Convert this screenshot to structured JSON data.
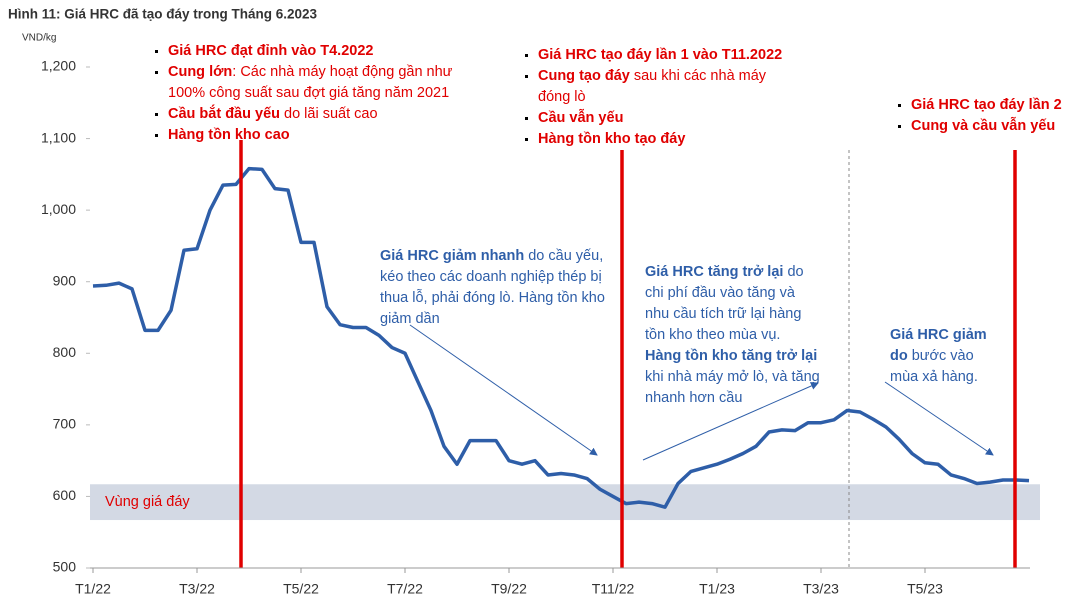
{
  "chart_data": {
    "type": "line",
    "title": "Hình 11: Giá HRC đã tạo đáy trong Tháng 6.2023",
    "y_label": "VND/kg",
    "categories": [
      "T1/22",
      null,
      null,
      null,
      null,
      null,
      null,
      null,
      "T3/22",
      null,
      null,
      null,
      null,
      null,
      null,
      null,
      "T5/22",
      null,
      null,
      null,
      null,
      null,
      null,
      null,
      "T7/22",
      null,
      null,
      null,
      null,
      null,
      null,
      null,
      "T9/22",
      null,
      null,
      null,
      null,
      null,
      null,
      null,
      "T11/22",
      null,
      null,
      null,
      null,
      null,
      null,
      null,
      "T1/23",
      null,
      null,
      null,
      null,
      null,
      null,
      null,
      "T3/23",
      null,
      null,
      null,
      null,
      null,
      null,
      null,
      "T5/23",
      null,
      null,
      null,
      null,
      null,
      null,
      null,
      null
    ],
    "series": [
      {
        "name": "Giá HRC",
        "color": "#2e5ea8",
        "values": [
          894,
          895,
          898,
          890,
          832,
          832,
          860,
          944,
          946,
          1000,
          1035,
          1036,
          1058,
          1057,
          1030,
          1028,
          955,
          955,
          865,
          840,
          836,
          836,
          825,
          808,
          800,
          760,
          720,
          670,
          645,
          678,
          678,
          678,
          650,
          645,
          650,
          630,
          632,
          630,
          625,
          610,
          600,
          590,
          592,
          590,
          585,
          618,
          635,
          640,
          645,
          652,
          660,
          670,
          690,
          693,
          692,
          703,
          703,
          707,
          720,
          718,
          708,
          697,
          680,
          660,
          647,
          645,
          630,
          625,
          618,
          620,
          623,
          623,
          622
        ]
      }
    ],
    "ylim": [
      500,
      1200
    ],
    "yticks": [
      500,
      600,
      700,
      800,
      900,
      {
        "value": 1000,
        "label": "1,000"
      },
      {
        "value": 1100,
        "label": "1,100"
      },
      {
        "value": 1200,
        "label": "1,200"
      }
    ],
    "band": {
      "label": "Vùng giá đáy",
      "range": [
        567,
        617
      ],
      "color": "#d3d9e4"
    },
    "annotations": [
      {
        "color": "#e00000",
        "bullets": [
          [
            {
              "text": "Giá HRC đạt đỉnh vào T4.2022",
              "bold": true
            }
          ],
          [
            {
              "text": "Cung lớn",
              "bold": true
            },
            {
              "text": ": Các nhà máy hoạt động gần như 100% công suất sau đợt giá tăng năm 2021",
              "bold": false
            }
          ],
          [
            {
              "text": "Cầu bắt đầu yếu",
              "bold": true
            },
            {
              "text": " do lãi suất cao",
              "bold": false
            }
          ],
          [
            {
              "text": "Hàng tồn kho cao",
              "bold": true
            }
          ]
        ]
      },
      {
        "color": "#e00000",
        "bullets": [
          [
            {
              "text": "Giá HRC tạo đáy lần 1 vào T11.2022",
              "bold": true
            }
          ],
          [
            {
              "text": "Cung tạo đáy",
              "bold": true
            },
            {
              "text": " sau khi các nhà máy đóng lò",
              "bold": false
            }
          ],
          [
            {
              "text": "Cầu vẫn yếu",
              "bold": true
            }
          ],
          [
            {
              "text": "Hàng tồn kho tạo đáy",
              "bold": true
            }
          ]
        ]
      },
      {
        "color": "#e00000",
        "bullets": [
          [
            {
              "text": "Giá HRC tạo đáy lần 2",
              "bold": true
            }
          ],
          [
            {
              "text": "Cung và cầu vẫn yếu",
              "bold": true
            }
          ]
        ]
      }
    ],
    "notes": [
      {
        "color": "#2e5ea8",
        "parts": [
          {
            "text": "Giá HRC giảm nhanh",
            "bold": true
          },
          {
            "text": " do cầu yếu, kéo theo các doanh nghiệp thép bị thua lỗ, phải đóng lò. Hàng tồn kho giảm dần",
            "bold": false
          }
        ]
      },
      {
        "color": "#2e5ea8",
        "parts": [
          {
            "text": "Giá HRC tăng trở lại",
            "bold": true
          },
          {
            "text": " do chi phí đầu vào tăng và nhu cầu tích trữ lại hàng tồn kho theo mùa vụ. ",
            "bold": false
          },
          {
            "text": "Hàng tồn kho tăng trở lại",
            "bold": true
          },
          {
            "text": " khi nhà máy mở lò, và tăng nhanh hơn cầu",
            "bold": false
          }
        ]
      },
      {
        "color": "#2e5ea8",
        "parts": [
          {
            "text": "Giá HRC giảm do",
            "bold": true
          },
          {
            "text": " bước vào mùa xả hàng.",
            "bold": false
          }
        ]
      }
    ]
  }
}
